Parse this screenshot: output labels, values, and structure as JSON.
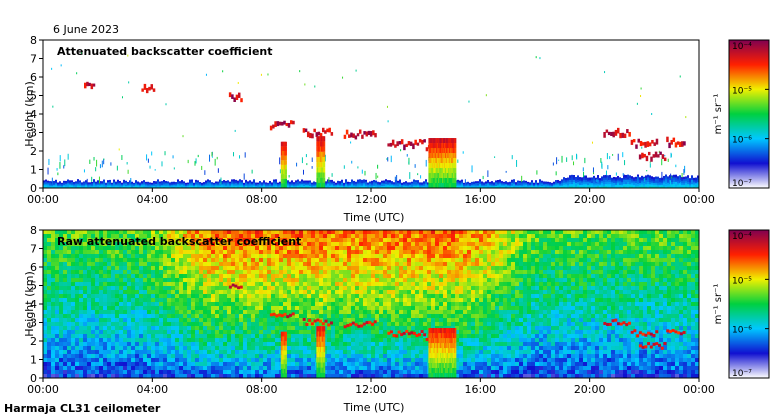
{
  "date_label": "6 June 2023",
  "footer_label": "Harmaja CL31 ceilometer",
  "chart_data": [
    {
      "type": "heatmap",
      "title": "Attenuated backscatter coefficient",
      "xlabel": "Time (UTC)",
      "ylabel": "Height (km)",
      "x_ticks": [
        "00:00",
        "04:00",
        "08:00",
        "12:00",
        "16:00",
        "20:00",
        "00:00"
      ],
      "x_tick_hours": [
        0,
        4,
        8,
        12,
        16,
        20,
        24
      ],
      "xlim_hours": [
        0,
        24
      ],
      "y_ticks": [
        0,
        1,
        2,
        3,
        4,
        5,
        6,
        7,
        8
      ],
      "ylim": [
        0,
        8
      ],
      "colorbar": {
        "scale": "log",
        "range": [
          1e-07,
          0.0001
        ],
        "tick_labels": [
          "10⁻⁷",
          "10⁻⁶",
          "10⁻⁵",
          "10⁻⁴"
        ],
        "unit": "m⁻¹ sr⁻¹",
        "colors": [
          "#ffffff",
          "#1010d0",
          "#00c8ff",
          "#00d040",
          "#f0f000",
          "#ff2000",
          "#800050"
        ]
      },
      "cloud_layers": [
        {
          "start_h": 1.5,
          "end_h": 1.9,
          "height_km": 5.8
        },
        {
          "start_h": 3.6,
          "end_h": 4.1,
          "height_km": 5.5
        },
        {
          "start_h": 6.8,
          "end_h": 7.3,
          "height_km": 5.0
        },
        {
          "start_h": 8.3,
          "end_h": 9.2,
          "height_km": 3.5
        },
        {
          "start_h": 9.5,
          "end_h": 10.6,
          "height_km": 3.1
        },
        {
          "start_h": 11.0,
          "end_h": 12.2,
          "height_km": 3.0
        },
        {
          "start_h": 12.6,
          "end_h": 14.0,
          "height_km": 2.5
        },
        {
          "start_h": 14.0,
          "end_h": 15.0,
          "height_km": 2.2
        },
        {
          "start_h": 20.5,
          "end_h": 21.5,
          "height_km": 3.1
        },
        {
          "start_h": 21.5,
          "end_h": 22.5,
          "height_km": 2.5
        },
        {
          "start_h": 21.8,
          "end_h": 22.8,
          "height_km": 1.8
        },
        {
          "start_h": 22.8,
          "end_h": 23.5,
          "height_km": 2.6
        }
      ],
      "precipitation_shafts": [
        {
          "start_h": 8.7,
          "end_h": 8.9,
          "top_km": 2.5
        },
        {
          "start_h": 10.0,
          "end_h": 10.3,
          "top_km": 2.8
        },
        {
          "start_h": 14.1,
          "end_h": 15.1,
          "top_km": 2.7
        }
      ],
      "boundary_layer_top_km": 0.4
    },
    {
      "type": "heatmap",
      "title": "Raw attenuated backscatter coefficient",
      "xlabel": "Time (UTC)",
      "ylabel": "Height (km)",
      "x_ticks": [
        "00:00",
        "04:00",
        "08:00",
        "12:00",
        "16:00",
        "20:00",
        "00:00"
      ],
      "x_tick_hours": [
        0,
        4,
        8,
        12,
        16,
        20,
        24
      ],
      "xlim_hours": [
        0,
        24
      ],
      "y_ticks": [
        0,
        1,
        2,
        3,
        4,
        5,
        6,
        7,
        8
      ],
      "ylim": [
        0,
        8
      ],
      "colorbar": {
        "scale": "log",
        "range": [
          1e-07,
          0.0001
        ],
        "tick_labels": [
          "10⁻⁷",
          "10⁻⁶",
          "10⁻⁵",
          "10⁻⁴"
        ],
        "unit": "m⁻¹ sr⁻¹",
        "colors": [
          "#ffffff",
          "#1010d0",
          "#00c8ff",
          "#00d040",
          "#f0f000",
          "#ff2000",
          "#800050"
        ]
      },
      "noise_profile": {
        "near_surface_level": 0.15,
        "upper_level_night": 0.55,
        "upper_level_day": 0.78,
        "day_window_hours": [
          6,
          15.5
        ]
      }
    }
  ]
}
